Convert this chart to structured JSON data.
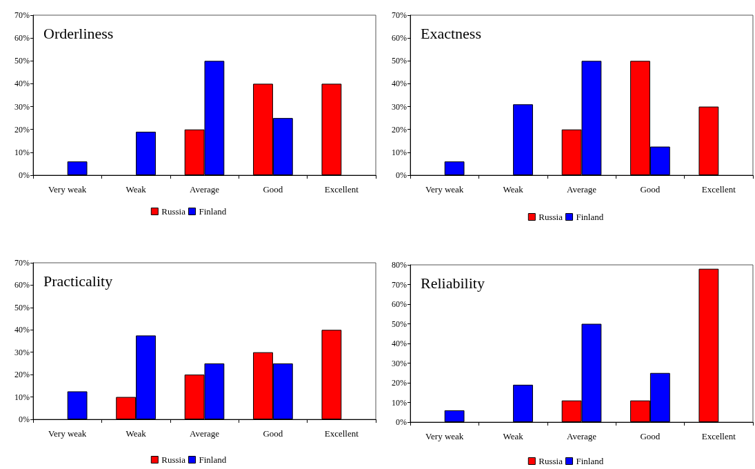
{
  "chart_data": [
    {
      "type": "bar",
      "title": "Orderliness",
      "categories": [
        "Very weak",
        "Weak",
        "Average",
        "Good",
        "Excellent"
      ],
      "series": [
        {
          "name": "Russia",
          "color": "#ff0000",
          "values": [
            0,
            0,
            20,
            40,
            40
          ]
        },
        {
          "name": "Finland",
          "color": "#0000ff",
          "values": [
            6,
            19,
            50,
            25,
            0
          ]
        }
      ],
      "ylim": [
        0,
        70
      ],
      "yticks": [
        {
          "value": 0,
          "label": "0%"
        },
        {
          "value": 10,
          "label": "10%"
        },
        {
          "value": 20,
          "label": "20%"
        },
        {
          "value": 30,
          "label": "30%"
        },
        {
          "value": 40,
          "label": "40%"
        },
        {
          "value": 50,
          "label": "50%"
        },
        {
          "value": 60,
          "label": "60%"
        },
        {
          "value": 70,
          "label": "70%"
        }
      ],
      "grid": false,
      "legend": "bottom"
    },
    {
      "type": "bar",
      "title": "Exactness",
      "categories": [
        "Very weak",
        "Weak",
        "Average",
        "Good",
        "Excellent"
      ],
      "series": [
        {
          "name": "Russia",
          "color": "#ff0000",
          "values": [
            0,
            0,
            20,
            50,
            30
          ]
        },
        {
          "name": "Finland",
          "color": "#0000ff",
          "values": [
            6,
            31,
            50,
            12.5,
            0
          ]
        }
      ],
      "ylim": [
        0,
        70
      ],
      "yticks": [
        {
          "value": 0,
          "label": "0%"
        },
        {
          "value": 10,
          "label": "10%"
        },
        {
          "value": 20,
          "label": "20%"
        },
        {
          "value": 30,
          "label": "30%"
        },
        {
          "value": 40,
          "label": "40%"
        },
        {
          "value": 50,
          "label": "50%"
        },
        {
          "value": 60,
          "label": "60%"
        },
        {
          "value": 70,
          "label": "70%"
        }
      ],
      "grid": false,
      "legend": "bottom"
    },
    {
      "type": "bar",
      "title": "Practicality",
      "categories": [
        "Very weak",
        "Weak",
        "Average",
        "Good",
        "Excellent"
      ],
      "series": [
        {
          "name": "Russia",
          "color": "#ff0000",
          "values": [
            0,
            10,
            20,
            30,
            40
          ]
        },
        {
          "name": "Finland",
          "color": "#0000ff",
          "values": [
            12.5,
            37.5,
            25,
            25,
            0
          ]
        }
      ],
      "ylim": [
        0,
        70
      ],
      "yticks": [
        {
          "value": 0,
          "label": "0%"
        },
        {
          "value": 10,
          "label": "10%"
        },
        {
          "value": 20,
          "label": "20%"
        },
        {
          "value": 30,
          "label": "30%"
        },
        {
          "value": 40,
          "label": "40%"
        },
        {
          "value": 50,
          "label": "50%"
        },
        {
          "value": 60,
          "label": "60%"
        },
        {
          "value": 70,
          "label": "70%"
        }
      ],
      "grid": false,
      "legend": "bottom"
    },
    {
      "type": "bar",
      "title": "Reliability",
      "categories": [
        "Very weak",
        "Weak",
        "Average",
        "Good",
        "Excellent"
      ],
      "series": [
        {
          "name": "Russia",
          "color": "#ff0000",
          "values": [
            0,
            0,
            11,
            11,
            78
          ]
        },
        {
          "name": "Finland",
          "color": "#0000ff",
          "values": [
            6,
            19,
            50,
            25,
            0
          ]
        }
      ],
      "ylim": [
        0,
        80
      ],
      "yticks": [
        {
          "value": 0,
          "label": "0%"
        },
        {
          "value": 10,
          "label": "10%"
        },
        {
          "value": 20,
          "label": "20%"
        },
        {
          "value": 30,
          "label": "30%"
        },
        {
          "value": 40,
          "label": "40%"
        },
        {
          "value": 50,
          "label": "50%"
        },
        {
          "value": 60,
          "label": "60%"
        },
        {
          "value": 70,
          "label": "70%"
        },
        {
          "value": 80,
          "label": "80%"
        }
      ],
      "grid": false,
      "legend": "bottom"
    }
  ]
}
